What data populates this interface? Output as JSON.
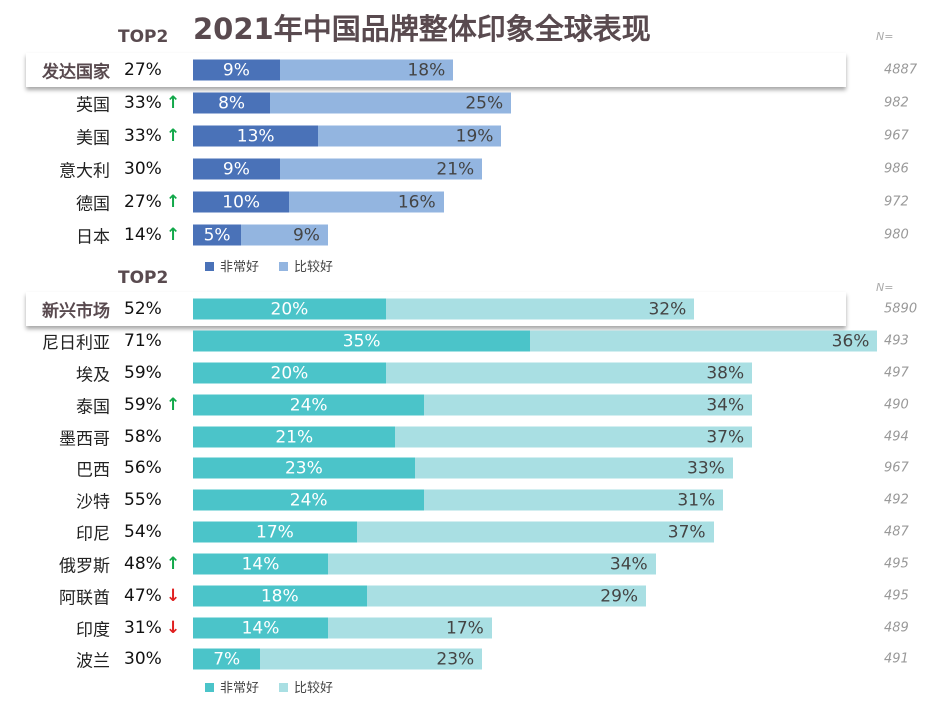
{
  "chart_data": [
    {
      "type": "bar",
      "stacked": true,
      "orientation": "horizontal",
      "title": "2021年中国品牌整体印象全球表现",
      "top2_label": "TOP2",
      "n_label": "N=",
      "colors": {
        "very_good": "#4a72b8",
        "good": "#93b5e0"
      },
      "legend": [
        "非常好",
        "比较好"
      ],
      "categories": [
        "发达国家",
        "英国",
        "美国",
        "意大利",
        "德国",
        "日本"
      ],
      "top2": [
        "27%",
        "33%",
        "33%",
        "30%",
        "27%",
        "14%"
      ],
      "trend": [
        "",
        "up",
        "up",
        "",
        "up",
        "up"
      ],
      "series": [
        {
          "name": "非常好",
          "values": [
            9,
            8,
            13,
            9,
            10,
            5
          ]
        },
        {
          "name": "比较好",
          "values": [
            18,
            25,
            19,
            21,
            16,
            9
          ]
        }
      ],
      "n": [
        "4887",
        "982",
        "967",
        "986",
        "972",
        "980"
      ]
    },
    {
      "type": "bar",
      "stacked": true,
      "orientation": "horizontal",
      "top2_label": "TOP2",
      "n_label": "N=",
      "colors": {
        "very_good": "#4bc4c9",
        "good": "#a9dfe3",
        "up": "#12a84a",
        "down": "#e02020"
      },
      "legend": [
        "非常好",
        "比较好"
      ],
      "categories": [
        "新兴市场",
        "尼日利亚",
        "埃及",
        "泰国",
        "墨西哥",
        "巴西",
        "沙特",
        "印尼",
        "俄罗斯",
        "阿联酋",
        "印度",
        "波兰"
      ],
      "top2": [
        "52%",
        "71%",
        "59%",
        "59%",
        "58%",
        "56%",
        "55%",
        "54%",
        "48%",
        "47%",
        "31%",
        "30%"
      ],
      "trend": [
        "",
        "",
        "",
        "up",
        "",
        "",
        "",
        "",
        "up",
        "down",
        "down",
        ""
      ],
      "series": [
        {
          "name": "非常好",
          "values": [
            20,
            35,
            20,
            24,
            21,
            23,
            24,
            17,
            14,
            18,
            14,
            7
          ]
        },
        {
          "name": "比较好",
          "values": [
            32,
            36,
            38,
            34,
            37,
            33,
            31,
            37,
            34,
            29,
            17,
            23
          ]
        }
      ],
      "n": [
        "5890",
        "493",
        "497",
        "490",
        "494",
        "967",
        "492",
        "487",
        "495",
        "495",
        "489",
        "491"
      ]
    }
  ]
}
